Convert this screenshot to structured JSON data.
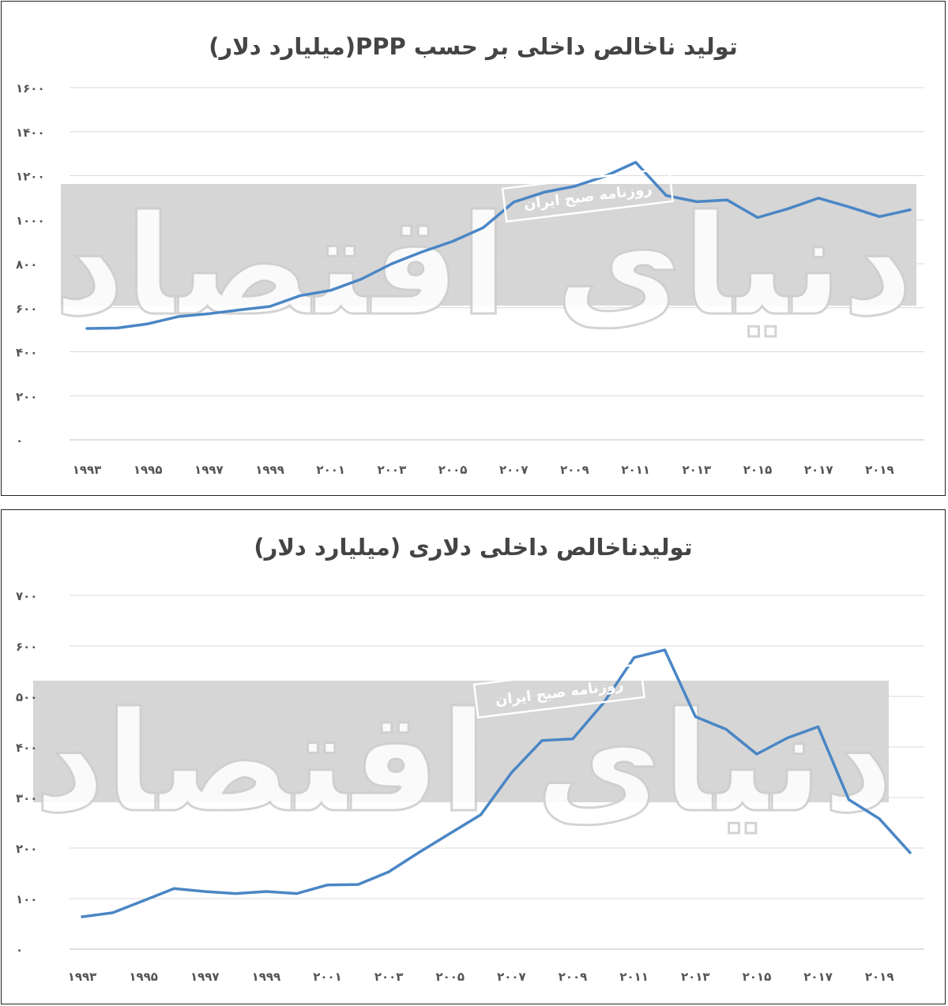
{
  "chart_data": [
    {
      "type": "line",
      "title": "تولید ناخالص داخلی بر حسب PPP(میلیارد دلار)",
      "x": [
        1993,
        1994,
        1995,
        1996,
        1997,
        1998,
        1999,
        2000,
        2001,
        2002,
        2003,
        2004,
        2005,
        2006,
        2007,
        2008,
        2009,
        2010,
        2011,
        2012,
        2013,
        2014,
        2015,
        2016,
        2017,
        2018,
        2019,
        2020
      ],
      "x_tick_labels": [
        "۱۹۹۳",
        "۱۹۹۵",
        "۱۹۹۷",
        "۱۹۹۹",
        "۲۰۰۱",
        "۲۰۰۳",
        "۲۰۰۵",
        "۲۰۰۷",
        "۲۰۰۹",
        "۲۰۱۱",
        "۲۰۱۳",
        "۲۰۱۵",
        "۲۰۱۷",
        "۲۰۱۹"
      ],
      "x_tick_values": [
        1993,
        1995,
        1997,
        1999,
        2001,
        2003,
        2005,
        2007,
        2009,
        2011,
        2013,
        2015,
        2017,
        2019
      ],
      "y_tick_labels": [
        "۰",
        "۲۰۰",
        "۴۰۰",
        "۶۰۰",
        "۸۰۰",
        "۱۰۰۰",
        "۱۲۰۰",
        "۱۴۰۰",
        "۱۶۰۰"
      ],
      "y_tick_values": [
        0,
        200,
        400,
        600,
        800,
        1000,
        1200,
        1400,
        1600
      ],
      "ylim": [
        0,
        1600
      ],
      "grid": true,
      "series": [
        {
          "color": "#4a86c5",
          "values": [
            506,
            508,
            527,
            560,
            573,
            590,
            606,
            655,
            679,
            730,
            800,
            854,
            902,
            964,
            1080,
            1125,
            1152,
            1198,
            1261,
            1110,
            1082,
            1090,
            1010,
            1050,
            1098,
            1058,
            1014,
            1045
          ]
        }
      ]
    },
    {
      "type": "line",
      "title": "تولیدناخالص داخلی دلاری (میلیارد دلار)",
      "x": [
        1993,
        1994,
        1995,
        1996,
        1997,
        1998,
        1999,
        2000,
        2001,
        2002,
        2003,
        2004,
        2005,
        2006,
        2007,
        2008,
        2009,
        2010,
        2011,
        2012,
        2013,
        2014,
        2015,
        2016,
        2017,
        2018,
        2019,
        2020
      ],
      "x_tick_labels": [
        "۱۹۹۳",
        "۱۹۹۵",
        "۱۹۹۷",
        "۱۹۹۹",
        "۲۰۰۱",
        "۲۰۰۳",
        "۲۰۰۵",
        "۲۰۰۷",
        "۲۰۰۹",
        "۲۰۱۱",
        "۲۰۱۳",
        "۲۰۱۵",
        "۲۰۱۷",
        "۲۰۱۹"
      ],
      "x_tick_values": [
        1993,
        1995,
        1997,
        1999,
        2001,
        2003,
        2005,
        2007,
        2009,
        2011,
        2013,
        2015,
        2017,
        2019
      ],
      "y_tick_labels": [
        "۰",
        "۱۰۰",
        "۲۰۰",
        "۳۰۰",
        "۴۰۰",
        "۵۰۰",
        "۶۰۰",
        "۷۰۰"
      ],
      "y_tick_values": [
        0,
        100,
        200,
        300,
        400,
        500,
        600,
        700
      ],
      "ylim": [
        0,
        700
      ],
      "grid": true,
      "series": [
        {
          "color": "#4a86c5",
          "values": [
            64,
            72,
            96,
            120,
            114,
            110,
            114,
            110,
            127,
            128,
            153,
            192,
            229,
            266,
            349,
            413,
            416,
            487,
            577,
            592,
            460,
            435,
            386,
            418,
            440,
            296,
            258,
            191
          ]
        }
      ]
    }
  ],
  "watermark": {
    "logo_text": "دنیای اقتصاد",
    "stamp_text": "روزنامه صبح ایران",
    "band_color": "#d6d6d6"
  }
}
